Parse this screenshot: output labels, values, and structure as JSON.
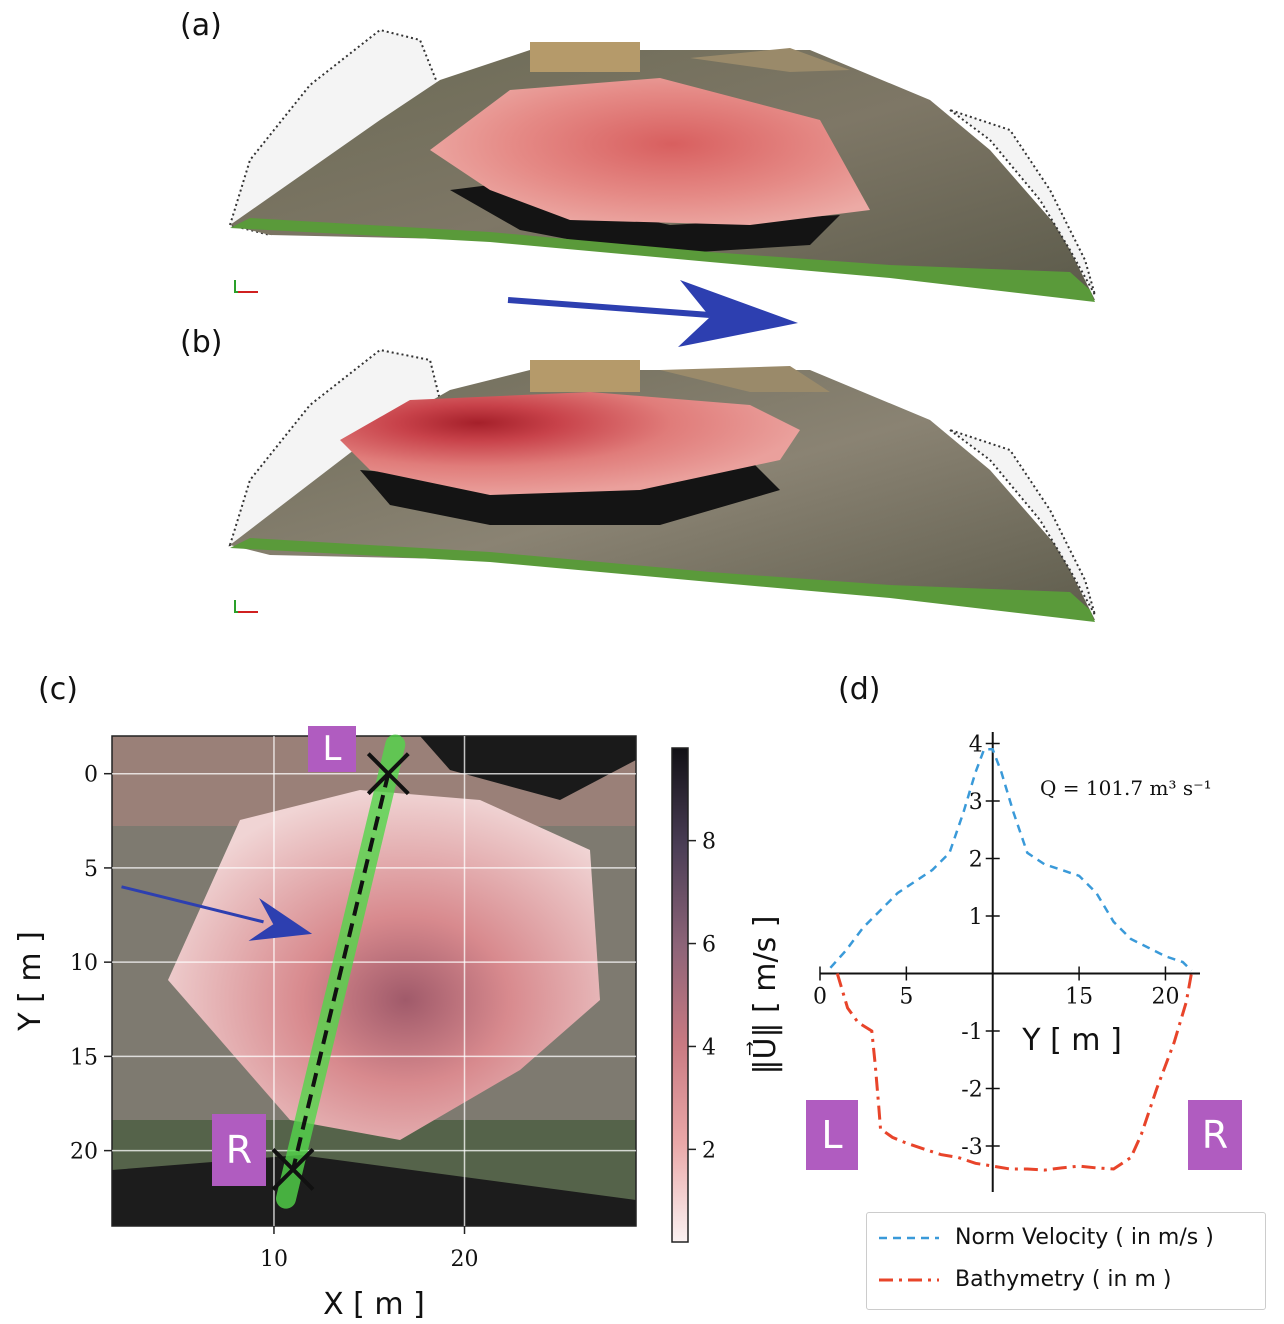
{
  "panels": {
    "a": "(a)",
    "b": "(b)",
    "c": "(c)",
    "d": "(d)"
  },
  "colors": {
    "water_red": "#e07a7a",
    "grass_green": "#5a9a3a",
    "arrow_blue": "#2d3fb0",
    "badge_purple": "#b05cc0",
    "velocity_blue": "#3a9ad9",
    "bathy_red": "#e8442a",
    "transect_green": "#52d64a"
  },
  "map_c": {
    "xlabel": "X [ m ]",
    "ylabel": "Y [ m ]",
    "xticks": [
      10,
      20
    ],
    "yticks": [
      0,
      5,
      10,
      15,
      20
    ],
    "xlim": [
      1.5,
      29
    ],
    "ylim": [
      24,
      -2
    ],
    "transect": {
      "L": [
        16,
        0
      ],
      "R": [
        11,
        21
      ]
    },
    "flow_arrow": {
      "from": [
        2,
        6
      ],
      "to": [
        12,
        8.5
      ]
    },
    "badge_L": "L",
    "badge_R": "R",
    "colorbar": {
      "label": "‖U⃗‖ [ m/s ]",
      "ticks": [
        2,
        4,
        6,
        8
      ],
      "range": [
        0.2,
        9.8
      ]
    }
  },
  "chart_data": {
    "type": "line",
    "xlabel": "Y [ m ]",
    "ylabel": "",
    "xlim": [
      0,
      22
    ],
    "ylim": [
      -3.8,
      4.2
    ],
    "xticks": [
      0,
      5,
      15,
      20
    ],
    "yticks": [
      -3,
      -2,
      -1,
      1,
      2,
      3,
      4
    ],
    "annotation": "Q = 101.7 m³ s⁻¹",
    "legend_position": "bottom-right",
    "badge_L": "L",
    "badge_R": "R",
    "series": [
      {
        "name": "Norm Velocity ( in m/s )",
        "style": "dashed",
        "color": "#3a9ad9",
        "x": [
          0.6,
          1.5,
          2.5,
          3.5,
          4.5,
          5.5,
          6.5,
          7.5,
          8.3,
          9.0,
          9.5,
          10.0,
          10.5,
          11.2,
          12.0,
          13.0,
          14.0,
          15.0,
          16.0,
          17.0,
          18.0,
          19.0,
          20.0,
          21.0,
          21.5
        ],
        "y": [
          0.1,
          0.4,
          0.8,
          1.1,
          1.4,
          1.6,
          1.8,
          2.1,
          2.8,
          3.5,
          3.9,
          3.9,
          3.5,
          2.8,
          2.1,
          1.9,
          1.8,
          1.7,
          1.4,
          0.9,
          0.6,
          0.45,
          0.3,
          0.2,
          0.05
        ]
      },
      {
        "name": "Bathymetry ( in m )",
        "style": "dashdot",
        "color": "#e8442a",
        "x": [
          1.0,
          1.6,
          2.2,
          3.0,
          3.2,
          3.4,
          3.5,
          4.2,
          5.0,
          6.0,
          7.0,
          8.0,
          9.0,
          10.0,
          11.0,
          12.0,
          13.0,
          14.0,
          15.0,
          16.0,
          17.0,
          18.0,
          18.6,
          19.5,
          20.5,
          21.2,
          21.5
        ],
        "y": [
          0.0,
          -0.6,
          -0.85,
          -1.0,
          -1.6,
          -2.3,
          -2.7,
          -2.85,
          -2.95,
          -3.05,
          -3.15,
          -3.2,
          -3.3,
          -3.35,
          -3.4,
          -3.4,
          -3.42,
          -3.38,
          -3.35,
          -3.38,
          -3.4,
          -3.2,
          -2.8,
          -2.0,
          -1.2,
          -0.5,
          0.0
        ]
      }
    ]
  }
}
